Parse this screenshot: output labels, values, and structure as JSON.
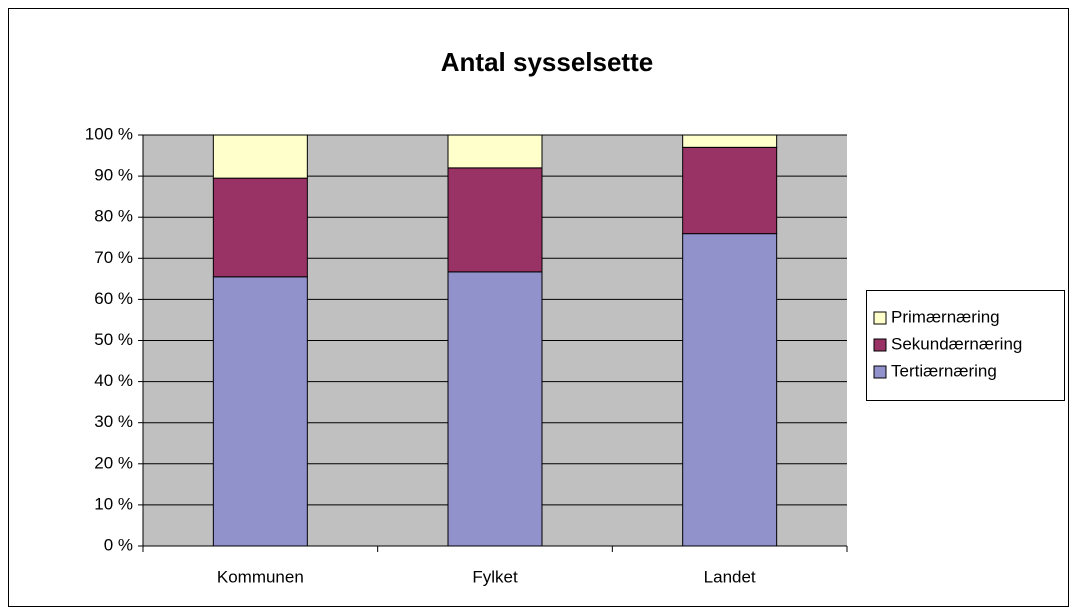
{
  "chart_data": {
    "type": "stacked_bar",
    "title": "Antal sysselsette",
    "categories": [
      "Kommunen",
      "Fylket",
      "Landet"
    ],
    "series": [
      {
        "name": "Tertiærnæring",
        "color": "#9191cc",
        "values": [
          65.5,
          66.7,
          76
        ]
      },
      {
        "name": "Sekundærnæring",
        "color": "#993366",
        "values": [
          24,
          25.3,
          21
        ]
      },
      {
        "name": "Primærnæring",
        "color": "#ffffcc",
        "values": [
          10.5,
          8,
          3
        ]
      }
    ],
    "ylim": [
      0,
      100
    ],
    "yticks": [
      {
        "value": 0,
        "label": "0 %"
      },
      {
        "value": 10,
        "label": "10 %"
      },
      {
        "value": 20,
        "label": "20 %"
      },
      {
        "value": 30,
        "label": "30 %"
      },
      {
        "value": 40,
        "label": "40 %"
      },
      {
        "value": 50,
        "label": "50 %"
      },
      {
        "value": 60,
        "label": "60 %"
      },
      {
        "value": 70,
        "label": "70 %"
      },
      {
        "value": 80,
        "label": "80 %"
      },
      {
        "value": 90,
        "label": "90 %"
      },
      {
        "value": 100,
        "label": "100 %"
      }
    ],
    "grid": true,
    "legend": "right"
  }
}
